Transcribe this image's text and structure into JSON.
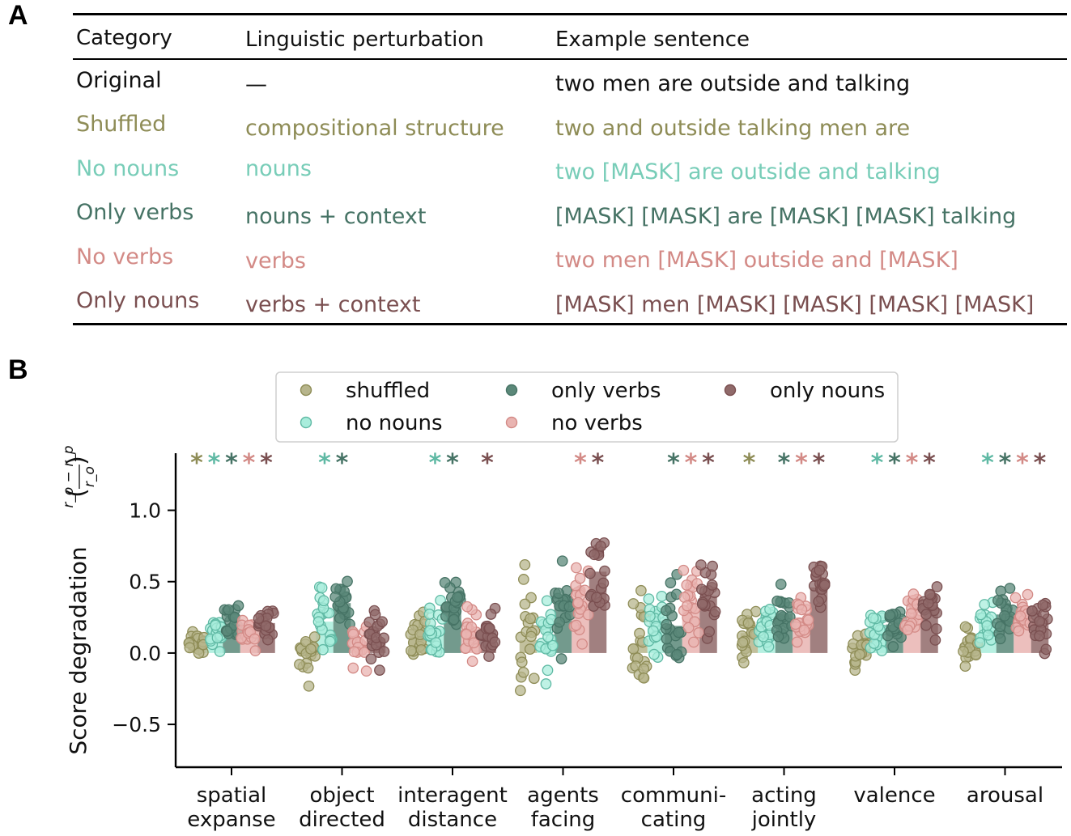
{
  "panel_a_label": "A",
  "panel_b_label": "B",
  "table": {
    "headers": [
      "Category",
      "Linguistic perturbation",
      "Example sentence"
    ],
    "rows": [
      {
        "category": "Original",
        "perturbation": "—",
        "example": "two men are outside and talking",
        "color": "#111111"
      },
      {
        "category": "Shuffled",
        "perturbation": "compositional structure",
        "example": "two and outside talking men are",
        "color": "#8e8c56"
      },
      {
        "category": "No nouns",
        "perturbation": "nouns",
        "example": "two [MASK] are outside and talking",
        "color": "#78cdb8"
      },
      {
        "category": "Only verbs",
        "perturbation": "nouns + context",
        "example": "[MASK] [MASK] are [MASK] [MASK] talking",
        "color": "#467365"
      },
      {
        "category": "No verbs",
        "perturbation": "verbs",
        "example": "two men [MASK] outside and [MASK]",
        "color": "#d38a86"
      },
      {
        "category": "Only nouns",
        "perturbation": "verbs + context",
        "example": "[MASK] men [MASK] [MASK] [MASK] [MASK]",
        "color": "#7a4f50"
      }
    ]
  },
  "chart_data": {
    "type": "bar",
    "subtype": "grouped bar with jittered individual points",
    "ylabel": "Score degradation",
    "ylabel_formula": "(r_o − r_p) / r_o",
    "ylim": [
      -0.8,
      1.4
    ],
    "yticks": [
      -0.5,
      0.0,
      0.5,
      1.0
    ],
    "ytick_labels": [
      "−0.5",
      "0.0",
      "0.5",
      "1.0"
    ],
    "categories": [
      [
        "spatial",
        "expanse"
      ],
      [
        "object",
        "directed"
      ],
      [
        "interagent",
        "distance"
      ],
      [
        "agents",
        "facing"
      ],
      [
        "communi-",
        "cating"
      ],
      [
        "acting",
        "jointly"
      ],
      [
        "valence"
      ],
      [
        "arousal"
      ]
    ],
    "legend_position": "top-center",
    "significance_marker": "*",
    "series": [
      {
        "name": "shuffled",
        "color": "#8e8c56",
        "fill": "#b7b58c",
        "values": [
          0.07,
          -0.02,
          0.12,
          0.09,
          0.06,
          0.14,
          0.03,
          0.03
        ],
        "significant": [
          true,
          false,
          false,
          false,
          false,
          true,
          false,
          false
        ]
      },
      {
        "name": "no nouns",
        "color": "#5fb9a4",
        "fill": "#a9eddc",
        "values": [
          0.14,
          0.22,
          0.17,
          0.05,
          0.19,
          0.15,
          0.17,
          0.22
        ],
        "significant": [
          true,
          true,
          true,
          false,
          false,
          false,
          true,
          true
        ]
      },
      {
        "name": "only verbs",
        "color": "#467365",
        "fill": "#5b8879",
        "values": [
          0.2,
          0.35,
          0.36,
          0.34,
          0.19,
          0.28,
          0.2,
          0.27
        ],
        "significant": [
          true,
          true,
          true,
          false,
          true,
          true,
          true,
          true
        ]
      },
      {
        "name": "no verbs",
        "color": "#d38a86",
        "fill": "#e9b4b1",
        "values": [
          0.12,
          0.05,
          0.15,
          0.38,
          0.33,
          0.25,
          0.26,
          0.25
        ],
        "significant": [
          true,
          false,
          false,
          true,
          true,
          true,
          true,
          true
        ]
      },
      {
        "name": "only nouns",
        "color": "#7a4f50",
        "fill": "#906a6a",
        "values": [
          0.21,
          0.1,
          0.16,
          0.57,
          0.4,
          0.46,
          0.31,
          0.24
        ],
        "significant": [
          true,
          false,
          true,
          true,
          true,
          true,
          true,
          true
        ]
      }
    ],
    "points": {
      "seed": 7,
      "per_group": 20,
      "spread": [
        [
          0.08,
          0.1,
          0.1,
          0.08,
          0.1
        ],
        [
          0.1,
          0.17,
          0.14,
          0.15,
          0.17
        ],
        [
          0.13,
          0.15,
          0.14,
          0.17,
          0.14
        ],
        [
          0.33,
          0.26,
          0.22,
          0.24,
          0.33
        ],
        [
          0.26,
          0.2,
          0.24,
          0.25,
          0.24
        ],
        [
          0.15,
          0.15,
          0.16,
          0.13,
          0.13
        ],
        [
          0.12,
          0.11,
          0.11,
          0.13,
          0.16
        ],
        [
          0.09,
          0.13,
          0.12,
          0.11,
          0.17
        ]
      ]
    }
  }
}
